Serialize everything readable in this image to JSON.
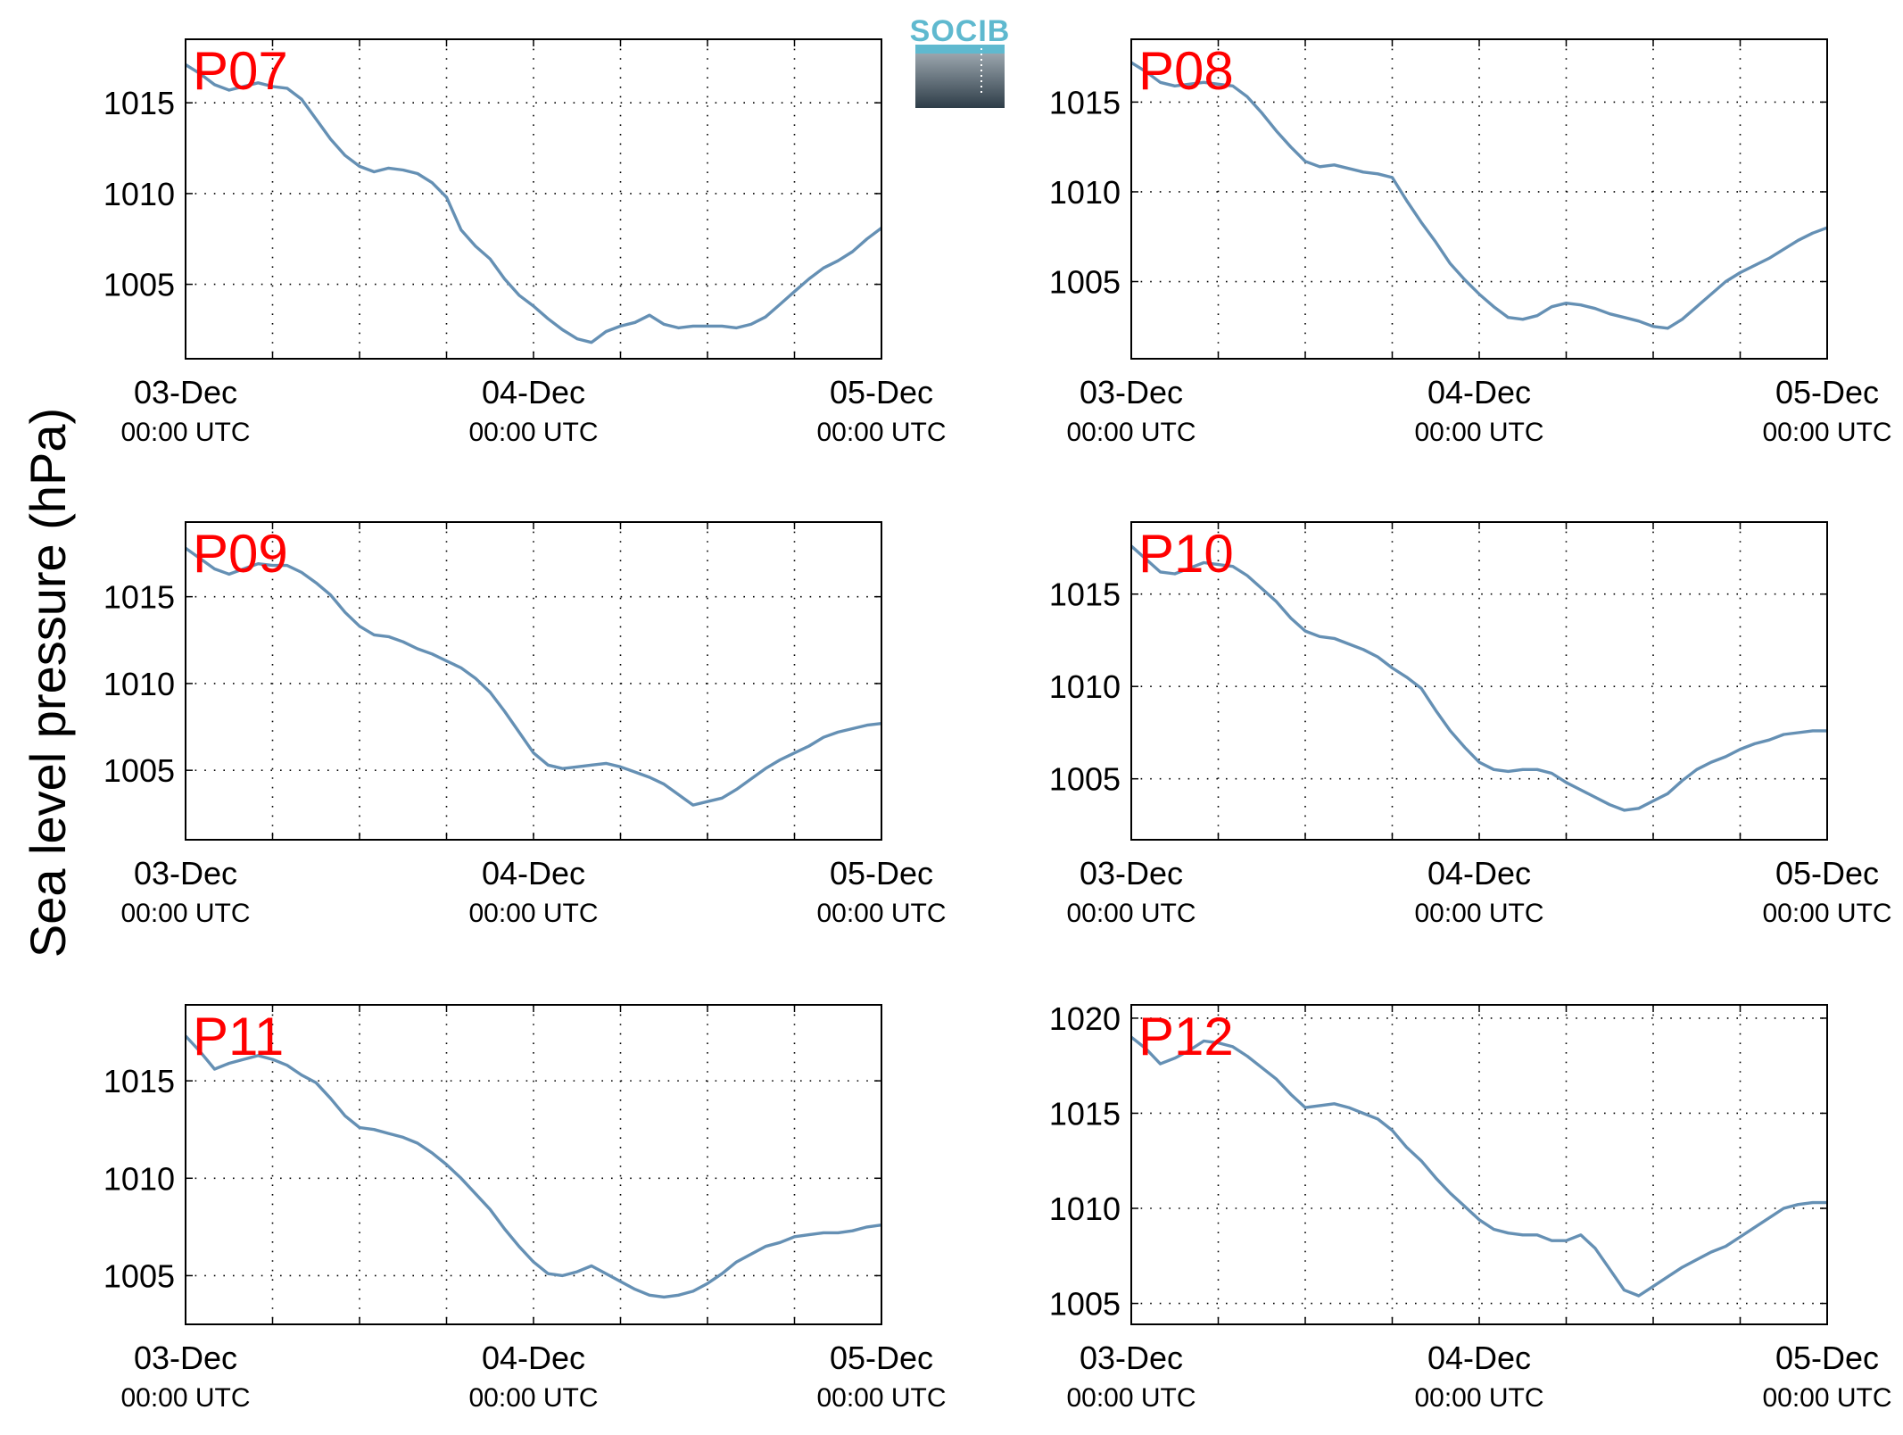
{
  "figure": {
    "ylabel": "Sea level pressure (hPa)",
    "logo_text": "SOCIB",
    "line_color": "#6590b4",
    "station_label_color": "#ff0000"
  },
  "chart_data": [
    {
      "type": "line",
      "station": "P07",
      "x_tick_labels": [
        [
          "03-Dec",
          "00:00 UTC"
        ],
        [
          "04-Dec",
          "00:00 UTC"
        ],
        [
          "05-Dec",
          "00:00 UTC"
        ]
      ],
      "y_ticks": [
        1005,
        1010,
        1015
      ],
      "ylim": [
        1000.9,
        1018.5
      ],
      "xlim_hours": [
        0,
        48
      ],
      "grid": true,
      "series": [
        {
          "x_hours": [
            0,
            1,
            2,
            3,
            4,
            5,
            6,
            7,
            8,
            9,
            10,
            11,
            12,
            13,
            14,
            15,
            16,
            17,
            18,
            19,
            20,
            21,
            22,
            23,
            24,
            25,
            26,
            27,
            28,
            29,
            30,
            31,
            32,
            33,
            34,
            35,
            36,
            37,
            38,
            39,
            40,
            41,
            42,
            43,
            44,
            45,
            46,
            47,
            48
          ],
          "values": [
            1017.1,
            1016.6,
            1016.0,
            1015.7,
            1015.9,
            1016.1,
            1015.9,
            1015.8,
            1015.2,
            1014.1,
            1013.0,
            1012.1,
            1011.5,
            1011.2,
            1011.4,
            1011.3,
            1011.1,
            1010.6,
            1009.8,
            1008.0,
            1007.1,
            1006.4,
            1005.3,
            1004.4,
            1003.8,
            1003.1,
            1002.5,
            1002.0,
            1001.8,
            1002.4,
            1002.7,
            1002.9,
            1003.3,
            1002.8,
            1002.6,
            1002.7,
            1002.7,
            1002.7,
            1002.6,
            1002.8,
            1003.2,
            1003.9,
            1004.6,
            1005.3,
            1005.9,
            1006.3,
            1006.8,
            1007.5,
            1008.1
          ]
        }
      ]
    },
    {
      "type": "line",
      "station": "P08",
      "x_tick_labels": [
        [
          "03-Dec",
          "00:00 UTC"
        ],
        [
          "04-Dec",
          "00:00 UTC"
        ],
        [
          "05-Dec",
          "00:00 UTC"
        ]
      ],
      "y_ticks": [
        1005,
        1010,
        1015
      ],
      "ylim": [
        1000.7,
        1018.5
      ],
      "xlim_hours": [
        0,
        48
      ],
      "grid": true,
      "series": [
        {
          "x_hours": [
            0,
            1,
            2,
            3,
            4,
            5,
            6,
            7,
            8,
            9,
            10,
            11,
            12,
            13,
            14,
            15,
            16,
            17,
            18,
            19,
            20,
            21,
            22,
            23,
            24,
            25,
            26,
            27,
            28,
            29,
            30,
            31,
            32,
            33,
            34,
            35,
            36,
            37,
            38,
            39,
            40,
            41,
            42,
            43,
            44,
            45,
            46,
            47,
            48
          ],
          "values": [
            1017.2,
            1016.7,
            1016.1,
            1015.9,
            1016.0,
            1016.1,
            1016.0,
            1015.9,
            1015.3,
            1014.4,
            1013.4,
            1012.5,
            1011.7,
            1011.4,
            1011.5,
            1011.3,
            1011.1,
            1011.0,
            1010.8,
            1009.5,
            1008.3,
            1007.2,
            1006.0,
            1005.1,
            1004.3,
            1003.6,
            1003.0,
            1002.9,
            1003.1,
            1003.6,
            1003.8,
            1003.7,
            1003.5,
            1003.2,
            1003.0,
            1002.8,
            1002.5,
            1002.4,
            1002.9,
            1003.6,
            1004.3,
            1005.0,
            1005.5,
            1005.9,
            1006.3,
            1006.8,
            1007.3,
            1007.7,
            1008.0
          ]
        }
      ]
    },
    {
      "type": "line",
      "station": "P09",
      "x_tick_labels": [
        [
          "03-Dec",
          "00:00 UTC"
        ],
        [
          "04-Dec",
          "00:00 UTC"
        ],
        [
          "05-Dec",
          "00:00 UTC"
        ]
      ],
      "y_ticks": [
        1005,
        1010,
        1015
      ],
      "ylim": [
        1001.0,
        1019.3
      ],
      "xlim_hours": [
        0,
        48
      ],
      "grid": true,
      "series": [
        {
          "x_hours": [
            0,
            1,
            2,
            3,
            4,
            5,
            6,
            7,
            8,
            9,
            10,
            11,
            12,
            13,
            14,
            15,
            16,
            17,
            18,
            19,
            20,
            21,
            22,
            23,
            24,
            25,
            26,
            27,
            28,
            29,
            30,
            31,
            32,
            33,
            34,
            35,
            36,
            37,
            38,
            39,
            40,
            41,
            42,
            43,
            44,
            45,
            46,
            47,
            48
          ],
          "values": [
            1017.8,
            1017.2,
            1016.6,
            1016.3,
            1016.6,
            1016.9,
            1016.8,
            1016.8,
            1016.4,
            1015.8,
            1015.1,
            1014.1,
            1013.3,
            1012.8,
            1012.7,
            1012.4,
            1012.0,
            1011.7,
            1011.3,
            1010.9,
            1010.3,
            1009.5,
            1008.4,
            1007.2,
            1006.0,
            1005.3,
            1005.1,
            1005.2,
            1005.3,
            1005.4,
            1005.2,
            1004.9,
            1004.6,
            1004.2,
            1003.6,
            1003.0,
            1003.2,
            1003.4,
            1003.9,
            1004.5,
            1005.1,
            1005.6,
            1006.0,
            1006.4,
            1006.9,
            1007.2,
            1007.4,
            1007.6,
            1007.7
          ]
        }
      ]
    },
    {
      "type": "line",
      "station": "P10",
      "x_tick_labels": [
        [
          "03-Dec",
          "00:00 UTC"
        ],
        [
          "04-Dec",
          "00:00 UTC"
        ],
        [
          "05-Dec",
          "00:00 UTC"
        ]
      ],
      "y_ticks": [
        1005,
        1010,
        1015
      ],
      "ylim": [
        1001.7,
        1018.9
      ],
      "xlim_hours": [
        0,
        48
      ],
      "grid": true,
      "series": [
        {
          "x_hours": [
            0,
            1,
            2,
            3,
            4,
            5,
            6,
            7,
            8,
            9,
            10,
            11,
            12,
            13,
            14,
            15,
            16,
            17,
            18,
            19,
            20,
            21,
            22,
            23,
            24,
            25,
            26,
            27,
            28,
            29,
            30,
            31,
            32,
            33,
            34,
            35,
            36,
            37,
            38,
            39,
            40,
            41,
            42,
            43,
            44,
            45,
            46,
            47,
            48
          ],
          "values": [
            1017.6,
            1016.9,
            1016.2,
            1016.1,
            1016.4,
            1016.7,
            1016.6,
            1016.5,
            1016.0,
            1015.3,
            1014.6,
            1013.7,
            1013.0,
            1012.7,
            1012.6,
            1012.3,
            1012.0,
            1011.6,
            1011.0,
            1010.5,
            1009.9,
            1008.7,
            1007.6,
            1006.7,
            1005.9,
            1005.5,
            1005.4,
            1005.5,
            1005.5,
            1005.3,
            1004.8,
            1004.4,
            1004.0,
            1003.6,
            1003.3,
            1003.4,
            1003.8,
            1004.2,
            1004.9,
            1005.5,
            1005.9,
            1006.2,
            1006.6,
            1006.9,
            1007.1,
            1007.4,
            1007.5,
            1007.6,
            1007.6
          ]
        }
      ]
    },
    {
      "type": "line",
      "station": "P11",
      "x_tick_labels": [
        [
          "03-Dec",
          "00:00 UTC"
        ],
        [
          "04-Dec",
          "00:00 UTC"
        ],
        [
          "05-Dec",
          "00:00 UTC"
        ]
      ],
      "y_ticks": [
        1005,
        1010,
        1015
      ],
      "ylim": [
        1002.5,
        1018.9
      ],
      "xlim_hours": [
        0,
        48
      ],
      "grid": true,
      "series": [
        {
          "x_hours": [
            0,
            1,
            2,
            3,
            4,
            5,
            6,
            7,
            8,
            9,
            10,
            11,
            12,
            13,
            14,
            15,
            16,
            17,
            18,
            19,
            20,
            21,
            22,
            23,
            24,
            25,
            26,
            27,
            28,
            29,
            30,
            31,
            32,
            33,
            34,
            35,
            36,
            37,
            38,
            39,
            40,
            41,
            42,
            43,
            44,
            45,
            46,
            47,
            48
          ],
          "values": [
            1017.3,
            1016.5,
            1015.6,
            1015.9,
            1016.1,
            1016.3,
            1016.1,
            1015.8,
            1015.3,
            1014.9,
            1014.1,
            1013.2,
            1012.6,
            1012.5,
            1012.3,
            1012.1,
            1011.8,
            1011.3,
            1010.7,
            1010.0,
            1009.2,
            1008.4,
            1007.4,
            1006.5,
            1005.7,
            1005.1,
            1005.0,
            1005.2,
            1005.5,
            1005.1,
            1004.7,
            1004.3,
            1004.0,
            1003.9,
            1004.0,
            1004.2,
            1004.6,
            1005.1,
            1005.7,
            1006.1,
            1006.5,
            1006.7,
            1007.0,
            1007.1,
            1007.2,
            1007.2,
            1007.3,
            1007.5,
            1007.6
          ]
        }
      ]
    },
    {
      "type": "line",
      "station": "P12",
      "x_tick_labels": [
        [
          "03-Dec",
          "00:00 UTC"
        ],
        [
          "04-Dec",
          "00:00 UTC"
        ],
        [
          "05-Dec",
          "00:00 UTC"
        ]
      ],
      "y_ticks": [
        1005,
        1010,
        1015,
        1020
      ],
      "ylim": [
        1003.9,
        1020.7
      ],
      "xlim_hours": [
        0,
        48
      ],
      "grid": true,
      "series": [
        {
          "x_hours": [
            0,
            1,
            2,
            3,
            4,
            5,
            6,
            7,
            8,
            9,
            10,
            11,
            12,
            13,
            14,
            15,
            16,
            17,
            18,
            19,
            20,
            21,
            22,
            23,
            24,
            25,
            26,
            27,
            28,
            29,
            30,
            31,
            32,
            33,
            34,
            35,
            36,
            37,
            38,
            39,
            40,
            41,
            42,
            43,
            44,
            45,
            46,
            47,
            48
          ],
          "values": [
            1019.0,
            1018.4,
            1017.6,
            1017.9,
            1018.3,
            1018.8,
            1018.7,
            1018.5,
            1018.0,
            1017.4,
            1016.8,
            1016.0,
            1015.3,
            1015.4,
            1015.5,
            1015.3,
            1015.0,
            1014.7,
            1014.1,
            1013.2,
            1012.5,
            1011.6,
            1010.8,
            1010.1,
            1009.4,
            1008.9,
            1008.7,
            1008.6,
            1008.6,
            1008.3,
            1008.3,
            1008.6,
            1007.9,
            1006.8,
            1005.7,
            1005.4,
            1005.9,
            1006.4,
            1006.9,
            1007.3,
            1007.7,
            1008.0,
            1008.5,
            1009.0,
            1009.5,
            1010.0,
            1010.2,
            1010.3,
            1010.3
          ]
        }
      ]
    }
  ]
}
